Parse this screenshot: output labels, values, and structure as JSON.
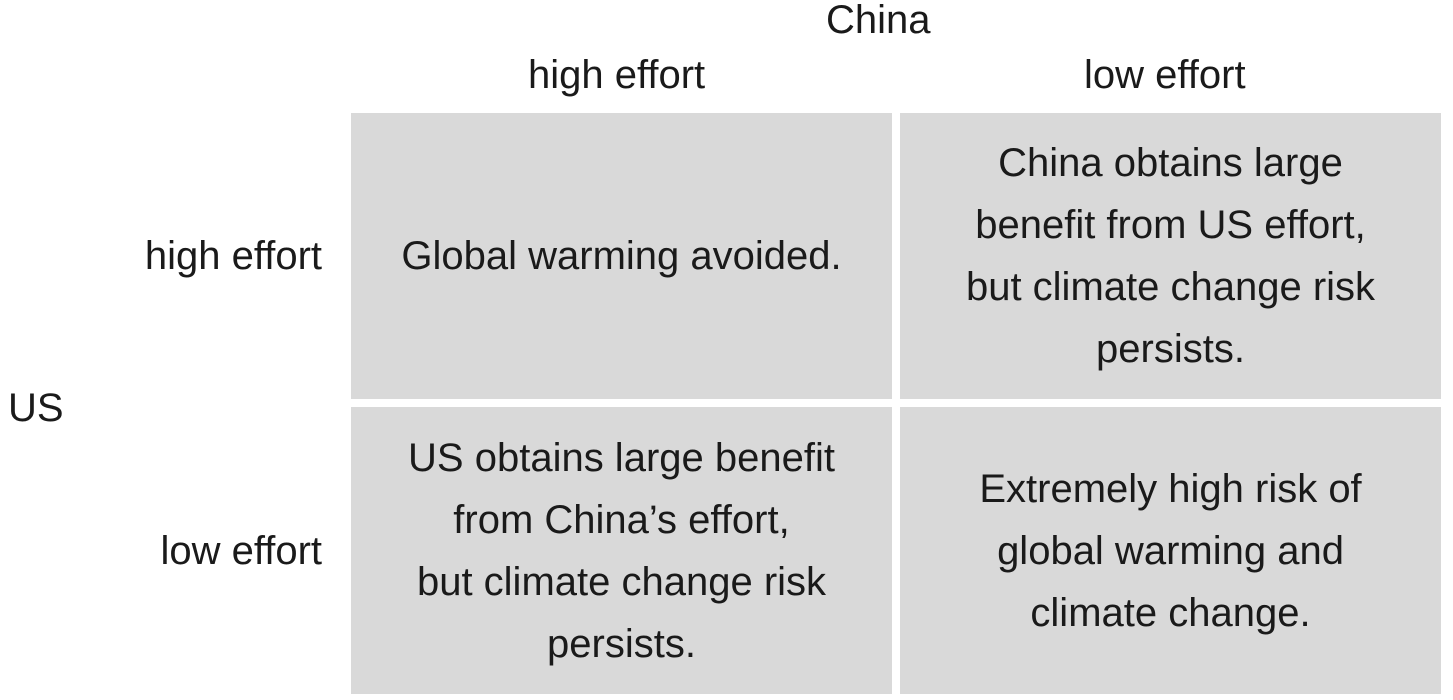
{
  "players": {
    "column": "China",
    "row": "US"
  },
  "strategies": {
    "column": [
      "high effort",
      "low effort"
    ],
    "row": [
      "high effort",
      "low effort"
    ]
  },
  "cells": {
    "high_high": "Global warming avoided.",
    "high_low": "China obtains large\nbenefit from US effort,\nbut climate change risk\npersists.",
    "low_high": "US obtains large benefit\nfrom China’s effort,\nbut climate change risk\npersists.",
    "low_low": "Extremely high risk of\nglobal warming and\nclimate change."
  },
  "colors": {
    "cell_fill": "#d9d9d9",
    "text": "#1a1a1a"
  }
}
